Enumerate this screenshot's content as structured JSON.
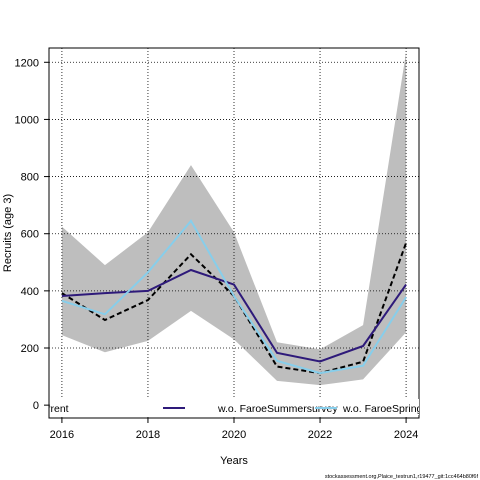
{
  "chart_data": {
    "type": "line",
    "xlabel": "Years",
    "ylabel": "Recruits (age 3)",
    "xlim": [
      2015.7,
      2024.3
    ],
    "ylim": [
      -45,
      1250
    ],
    "x_ticks": [
      2016,
      2018,
      2020,
      2022,
      2024
    ],
    "y_ticks": [
      0,
      200,
      400,
      600,
      800,
      1000,
      1200
    ],
    "grid": true,
    "legend_position": "bottom",
    "x": [
      2016,
      2017,
      2018,
      2019,
      2020,
      2021,
      2022,
      2023,
      2024
    ],
    "band": {
      "lower": [
        245,
        185,
        225,
        330,
        230,
        85,
        70,
        90,
        255
      ],
      "upper": [
        625,
        490,
        605,
        840,
        605,
        220,
        195,
        280,
        1235
      ],
      "color": "#bebebe"
    },
    "series": [
      {
        "name": "rrent",
        "values": [
          392,
          298,
          368,
          528,
          382,
          135,
          112,
          152,
          568
        ],
        "color": "#000000",
        "style": "dashed"
      },
      {
        "name": "w.o. FaroeSummersurvey",
        "values": [
          382,
          392,
          400,
          473,
          422,
          183,
          153,
          207,
          422
        ],
        "color": "#2e1a7a",
        "style": "solid"
      },
      {
        "name": "w.o. FaroeSpring",
        "values": [
          365,
          318,
          465,
          645,
          382,
          155,
          112,
          138,
          378
        ],
        "color": "#87ceeb",
        "style": "solid"
      }
    ]
  },
  "caption": "stockassessment.org,Plaice_testrun1,r19477_git:1cc464b80f6f"
}
